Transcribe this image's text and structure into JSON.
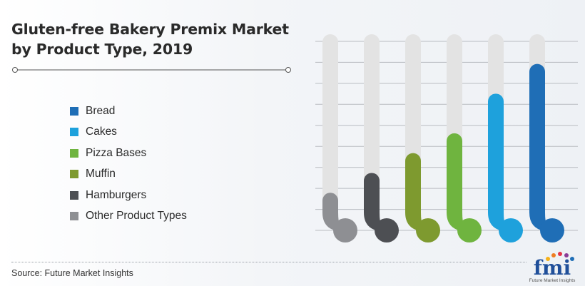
{
  "header": {
    "title_line1": "Gluten-free Bakery Premix Market",
    "title_line2": "by Product Type, 2019"
  },
  "chart_data": {
    "type": "bar",
    "title": "Gluten-free Bakery Premix Market by Product Type, 2019",
    "categories": [
      "Other Product Types",
      "Hamburgers",
      "Muffin",
      "Pizza Bases",
      "Cakes",
      "Bread"
    ],
    "values": [
      1,
      2,
      3,
      4,
      6,
      7.5
    ],
    "ylim": [
      0,
      9
    ],
    "colors": [
      "#8e8f93",
      "#4d4f53",
      "#7e9a2f",
      "#6fb43f",
      "#1ea1dc",
      "#1f6eb6"
    ],
    "track_color": "#e3e3e3",
    "grid": true,
    "legend_position": "left"
  },
  "legend": {
    "items": [
      {
        "label": "Bread",
        "color": "#1f6eb6"
      },
      {
        "label": "Cakes",
        "color": "#1ea1dc"
      },
      {
        "label": "Pizza Bases",
        "color": "#6fb43f"
      },
      {
        "label": "Muffin",
        "color": "#7e9a2f"
      },
      {
        "label": "Hamburgers",
        "color": "#4d4f53"
      },
      {
        "label": "Other Product Types",
        "color": "#8e8f93"
      }
    ]
  },
  "footer": {
    "source": "Source: Future Market Insights",
    "logo_text": "fmi",
    "logo_subtext": "Future Market Insights"
  }
}
